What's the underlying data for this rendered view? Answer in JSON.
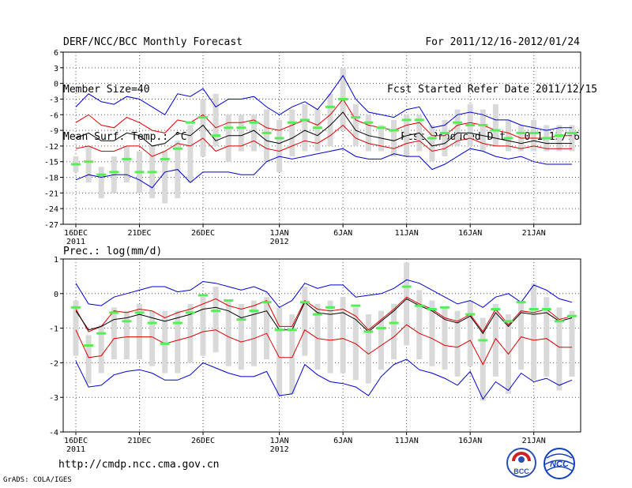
{
  "header": {
    "title": "DERF/NCC/BCC Monthly Forecast",
    "member_size": "Member Size=40",
    "variable": "Mean Surf. Temp.: °C",
    "forecast_range": "For 2011/12/16-2012/01/24",
    "started_refer": "Fcst Started Refer Date 2011/12/15",
    "produced": "Fcst Produced Date 2011/12/16"
  },
  "footer": {
    "url": "http://cmdp.ncc.cma.gov.cn",
    "credit": "GrADS: COLA/IGES",
    "logo_bcc_text": "BCC",
    "logo_ncc_text": "NCC"
  },
  "colors": {
    "ensemble_mean": "#000000",
    "spread_inner": "#dd0000",
    "spread_outer": "#0000cc",
    "member_box": "#d9d9d9",
    "observed_marker": "#55ee55",
    "grid": "#555555"
  },
  "chart_data": [
    {
      "type": "line",
      "title": "Mean Surf. Temp.: °C",
      "xlabel": "",
      "ylabel": "°C",
      "ylim": [
        -27,
        6
      ],
      "yticks": [
        6,
        3,
        0,
        -3,
        -6,
        -9,
        -12,
        -15,
        -18,
        -21,
        -24,
        -27
      ],
      "grid": true,
      "x_ticks": [
        {
          "day": 0,
          "label": "16DEC",
          "sublabel": "2011"
        },
        {
          "day": 5,
          "label": "21DEC",
          "sublabel": ""
        },
        {
          "day": 10,
          "label": "26DEC",
          "sublabel": ""
        },
        {
          "day": 16,
          "label": "1JAN",
          "sublabel": "2012"
        },
        {
          "day": 21,
          "label": "6JAN",
          "sublabel": ""
        },
        {
          "day": 26,
          "label": "11JAN",
          "sublabel": ""
        },
        {
          "day": 31,
          "label": "16JAN",
          "sublabel": ""
        },
        {
          "day": 36,
          "label": "21JAN",
          "sublabel": ""
        }
      ],
      "x_range": [
        0,
        39
      ],
      "series": [
        {
          "name": "max",
          "values": [
            -4.5,
            -2,
            -3.5,
            -4,
            -2.5,
            -3,
            -4.5,
            -6,
            -2,
            -2.5,
            -1,
            -4.5,
            -3,
            -3,
            -2.5,
            -4.5,
            -6,
            -4.5,
            -3.5,
            -5,
            -2,
            1.5,
            -3,
            -5.5,
            -6,
            -6.5,
            -5,
            -4.5,
            -8.5,
            -8,
            -6,
            -5.5,
            -6,
            -7,
            -7,
            -8,
            -8.5,
            -9,
            -8.5,
            -8.5
          ]
        },
        {
          "name": "upper",
          "values": [
            -7.5,
            -6,
            -8,
            -8.5,
            -6.5,
            -7.5,
            -9,
            -9.5,
            -7,
            -7.5,
            -6,
            -8.5,
            -7.5,
            -7.5,
            -7,
            -8.5,
            -9,
            -8,
            -7,
            -8,
            -6,
            -3,
            -7,
            -8,
            -8.5,
            -9,
            -8,
            -7.5,
            -10,
            -10,
            -8,
            -7.5,
            -8,
            -9,
            -9.5,
            -10.5,
            -10.5,
            -10.5,
            -10,
            -10
          ]
        },
        {
          "name": "mean",
          "values": [
            -10.5,
            -9.5,
            -11,
            -11,
            -9.5,
            -10,
            -12,
            -11.5,
            -9.5,
            -10,
            -8,
            -11,
            -10,
            -10,
            -9,
            -11,
            -11.5,
            -10.5,
            -9,
            -10,
            -8,
            -5.5,
            -9,
            -10,
            -10.5,
            -11,
            -10,
            -9.5,
            -12,
            -11.5,
            -9.5,
            -9.5,
            -10,
            -10.5,
            -11,
            -11.5,
            -11,
            -11.5,
            -11.5,
            -11.5
          ]
        },
        {
          "name": "lower",
          "values": [
            -12.5,
            -12,
            -13,
            -13,
            -12,
            -12,
            -14,
            -13,
            -11.5,
            -12,
            -10.5,
            -13,
            -12,
            -12,
            -11,
            -12.5,
            -13,
            -12,
            -11,
            -11.5,
            -10,
            -8,
            -10.5,
            -11.5,
            -12,
            -12.5,
            -11.5,
            -11,
            -13,
            -12.5,
            -11,
            -10.5,
            -11.5,
            -12,
            -12,
            -12.5,
            -12,
            -12.5,
            -12.5,
            -12.5
          ]
        },
        {
          "name": "min",
          "values": [
            -18.5,
            -17.5,
            -18,
            -17.5,
            -17.5,
            -18.5,
            -20,
            -17,
            -16.5,
            -19,
            -17,
            -17,
            -17,
            -17.5,
            -17.5,
            -15,
            -14,
            -14.5,
            -14,
            -13.5,
            -13,
            -12.5,
            -14,
            -14.5,
            -14.5,
            -13.5,
            -14,
            -14,
            -16.5,
            -15.5,
            -14,
            -12.5,
            -13,
            -14,
            -14.5,
            -14,
            -15,
            -15.5,
            -15.5,
            -15.5
          ]
        }
      ],
      "member_boxes": [
        [
          -17,
          -14
        ],
        [
          -19,
          -12
        ],
        [
          -22,
          -16
        ],
        [
          -21,
          -14
        ],
        [
          -19,
          -12
        ],
        [
          -21,
          -13
        ],
        [
          -22,
          -12
        ],
        [
          -23,
          -13
        ],
        [
          -22,
          -11
        ],
        [
          -19,
          -8
        ],
        [
          -14,
          -3
        ],
        [
          -12,
          -2
        ],
        [
          -15,
          -6
        ],
        [
          -13,
          -6
        ],
        [
          -13,
          -6
        ],
        [
          -15,
          -5
        ],
        [
          -17,
          -7
        ],
        [
          -14,
          -5
        ],
        [
          -13,
          -4
        ],
        [
          -13,
          -5
        ],
        [
          -12,
          -2
        ],
        [
          -9,
          3
        ],
        [
          -12,
          -4
        ],
        [
          -13,
          -6
        ],
        [
          -13,
          -8
        ],
        [
          -14,
          -7
        ],
        [
          -14,
          -6
        ],
        [
          -13,
          -6
        ],
        [
          -15,
          -8
        ],
        [
          -14,
          -7
        ],
        [
          -12,
          -5
        ],
        [
          -12,
          -4
        ],
        [
          -13,
          -5
        ],
        [
          -12,
          -4
        ],
        [
          -13,
          -7
        ],
        [
          -13,
          -8
        ],
        [
          -13,
          -7
        ],
        [
          -13,
          -8
        ],
        [
          -13,
          -8
        ],
        [
          -13,
          -8
        ]
      ],
      "observed": [
        -15.5,
        -15,
        -17.5,
        -17,
        -14.5,
        -17,
        -17,
        -14.5,
        -12.5,
        -7.5,
        -6.5,
        -10,
        -8.5,
        -8.5,
        -7.5,
        -9.5,
        -10.5,
        -7.5,
        -7,
        -8.5,
        -4.5,
        -3,
        -6.5,
        -7.5,
        -8.5,
        -9,
        -7,
        -7,
        -10.5,
        -9.5,
        -7.5,
        -8,
        -8,
        -9,
        -10.5,
        -9.5,
        -9.5,
        -10.5,
        -10,
        -9.5
      ]
    },
    {
      "type": "line",
      "title": "Prec.: log(mm/d)",
      "xlabel": "",
      "ylabel": "log(mm/d)",
      "ylim": [
        -4,
        1
      ],
      "yticks": [
        1,
        0,
        -1,
        -2,
        -3,
        -4
      ],
      "grid": true,
      "x_ticks": [
        {
          "day": 0,
          "label": "16DEC",
          "sublabel": "2011"
        },
        {
          "day": 5,
          "label": "21DEC",
          "sublabel": ""
        },
        {
          "day": 10,
          "label": "26DEC",
          "sublabel": ""
        },
        {
          "day": 16,
          "label": "1JAN",
          "sublabel": "2012"
        },
        {
          "day": 21,
          "label": "6JAN",
          "sublabel": ""
        },
        {
          "day": 26,
          "label": "11JAN",
          "sublabel": ""
        },
        {
          "day": 31,
          "label": "16JAN",
          "sublabel": ""
        },
        {
          "day": 36,
          "label": "21JAN",
          "sublabel": ""
        }
      ],
      "x_range": [
        0,
        39
      ],
      "series": [
        {
          "name": "max",
          "values": [
            0.3,
            -0.3,
            -0.35,
            -0.1,
            0,
            0.1,
            0.2,
            0.2,
            0.05,
            0.1,
            0.35,
            0.3,
            0.2,
            0.1,
            0.2,
            0.05,
            -0.4,
            -0.2,
            0.3,
            0.15,
            0.25,
            0.25,
            -0.1,
            -0.05,
            0,
            0.15,
            0.4,
            0.3,
            0.1,
            -0.1,
            -0.3,
            -0.2,
            -0.4,
            -0.1,
            0,
            -0.25,
            0.25,
            0.1,
            -0.15,
            -0.25
          ]
        },
        {
          "name": "upper",
          "values": [
            -0.45,
            -1.1,
            -0.95,
            -0.5,
            -0.55,
            -0.45,
            -0.5,
            -0.7,
            -0.55,
            -0.45,
            -0.3,
            -0.15,
            -0.35,
            -0.45,
            -0.35,
            -0.2,
            -0.95,
            -0.95,
            -0.2,
            -0.45,
            -0.5,
            -0.45,
            -0.65,
            -1.05,
            -0.75,
            -0.45,
            -0.1,
            -0.3,
            -0.45,
            -0.7,
            -0.8,
            -0.6,
            -1.1,
            -0.45,
            -0.9,
            -0.5,
            -0.55,
            -0.45,
            -0.75,
            -0.65
          ]
        },
        {
          "name": "mean",
          "values": [
            -0.5,
            -1.05,
            -0.95,
            -0.75,
            -0.7,
            -0.6,
            -0.7,
            -0.8,
            -0.7,
            -0.6,
            -0.45,
            -0.4,
            -0.5,
            -0.7,
            -0.6,
            -0.5,
            -1.05,
            -1.05,
            -0.25,
            -0.55,
            -0.6,
            -0.55,
            -0.75,
            -1.1,
            -0.8,
            -0.5,
            -0.15,
            -0.35,
            -0.5,
            -0.75,
            -0.85,
            -0.65,
            -1.15,
            -0.55,
            -0.95,
            -0.55,
            -0.6,
            -0.55,
            -0.8,
            -0.7
          ]
        },
        {
          "name": "lower",
          "values": [
            -1.05,
            -1.85,
            -1.8,
            -1.3,
            -1.25,
            -1.25,
            -1.25,
            -1.45,
            -1.35,
            -1.25,
            -1.1,
            -1.05,
            -1.25,
            -1.4,
            -1.3,
            -1.15,
            -1.85,
            -1.85,
            -1.05,
            -1.3,
            -1.35,
            -1.3,
            -1.45,
            -1.75,
            -1.5,
            -1.25,
            -0.9,
            -1.15,
            -1.3,
            -1.5,
            -1.55,
            -1.35,
            -2.05,
            -1.3,
            -1.75,
            -1.25,
            -1.35,
            -1.3,
            -1.55,
            -1.55
          ]
        },
        {
          "name": "min",
          "values": [
            -1.95,
            -2.7,
            -2.65,
            -2.35,
            -2.25,
            -2.2,
            -2.3,
            -2.5,
            -2.5,
            -2.35,
            -2,
            -2.15,
            -2.3,
            -2.4,
            -2.4,
            -2.25,
            -2.95,
            -2.9,
            -2.05,
            -2.35,
            -2.55,
            -2.6,
            -2.7,
            -2.95,
            -2.4,
            -2.05,
            -1.9,
            -2.2,
            -2.3,
            -2.45,
            -2.65,
            -2.25,
            -3.05,
            -2.55,
            -2.8,
            -2.3,
            -2.55,
            -2.45,
            -2.65,
            -2.5
          ]
        },
        {
          "name": "gap",
          "values": []
        }
      ],
      "member_boxes": [
        [
          -1.8,
          -0.2
        ],
        [
          -2.6,
          -1.2
        ],
        [
          -2.3,
          -0.9
        ],
        [
          -1.9,
          -0.4
        ],
        [
          -1.9,
          -0.5
        ],
        [
          -1.9,
          -0.3
        ],
        [
          -2.1,
          -0.5
        ],
        [
          -2.3,
          -0.5
        ],
        [
          -2.3,
          -0.5
        ],
        [
          -2,
          -0.3
        ],
        [
          -1.8,
          -0.1
        ],
        [
          -1.7,
          0.2
        ],
        [
          -2.1,
          -0.2
        ],
        [
          -2.2,
          -0.3
        ],
        [
          -2.1,
          -0.2
        ],
        [
          -1.9,
          -0.1
        ],
        [
          -3,
          -0.4
        ],
        [
          -2.9,
          -0.6
        ],
        [
          -1.8,
          0.2
        ],
        [
          -2.2,
          -0.3
        ],
        [
          -2.3,
          -0.2
        ],
        [
          -2.3,
          -0.1
        ],
        [
          -2.5,
          -0.4
        ],
        [
          -2.6,
          -0.6
        ],
        [
          -2.2,
          -0.5
        ],
        [
          -1.9,
          -0.3
        ],
        [
          -1.5,
          0.9
        ],
        [
          -1.9,
          0.1
        ],
        [
          -2.1,
          -0.2
        ],
        [
          -2.2,
          -0.4
        ],
        [
          -2.4,
          -0.5
        ],
        [
          -2.1,
          -0.2
        ],
        [
          -3.1,
          -0.7
        ],
        [
          -2.4,
          -0.3
        ],
        [
          -2.9,
          -0.6
        ],
        [
          -2.2,
          -0.2
        ],
        [
          -2.5,
          0.3
        ],
        [
          -2.4,
          -0.1
        ],
        [
          -2.8,
          -0.4
        ],
        [
          -2.4,
          -0.5
        ]
      ],
      "observed": [
        -0.4,
        -1.5,
        -1.15,
        -0.55,
        -0.8,
        -0.55,
        -0.85,
        -1.45,
        -0.85,
        -0.55,
        -0.05,
        -0.5,
        -0.2,
        -0.75,
        -0.5,
        -0.25,
        -1.05,
        -1.05,
        -0.25,
        -0.6,
        -0.4,
        null,
        -0.35,
        -1.1,
        -1,
        -0.85,
        0.2,
        -0.35,
        -0.45,
        -0.4,
        null,
        -0.6,
        -1.35,
        -0.45,
        -0.8,
        -0.25,
        -0.45,
        -0.45,
        -0.8,
        -0.65
      ]
    }
  ]
}
